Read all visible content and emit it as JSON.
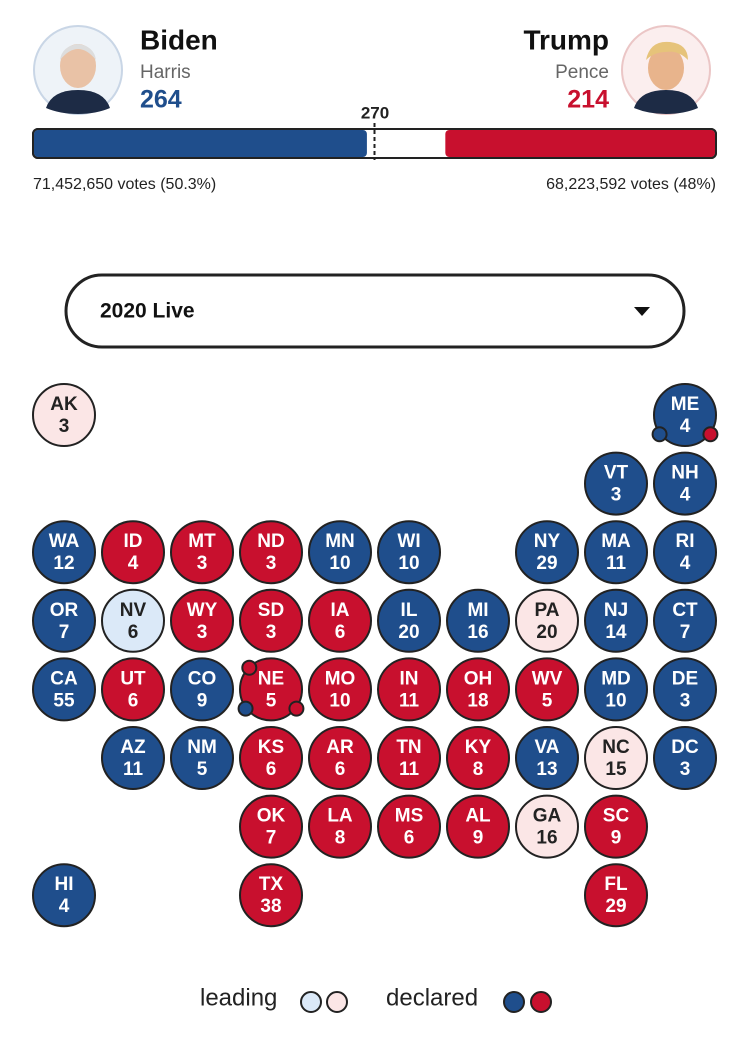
{
  "header": {
    "left": {
      "name": "Biden",
      "running_mate": "Harris",
      "electoral_votes": 264,
      "color": "#1f4e8c",
      "popular_vote": "71,452,650 votes (50.3%)"
    },
    "right": {
      "name": "Trump",
      "running_mate": "Pence",
      "electoral_votes": 214,
      "color": "#c8102e",
      "popular_vote": "68,223,592 votes (48%)"
    },
    "threshold": 270
  },
  "selector": {
    "label": "2020 Live"
  },
  "states": [
    {
      "abbr": "AK",
      "votes": 3,
      "color": "#fbe6e6"
    },
    {
      "abbr": "ME",
      "votes": 4,
      "color": "#1f4e8c",
      "dots": [
        {
          "corner": "bottom-left",
          "color": "#1f4e8c"
        },
        {
          "corner": "bottom-right",
          "color": "#c8102e"
        }
      ]
    },
    {
      "abbr": "VT",
      "votes": 3,
      "color": "#1f4e8c"
    },
    {
      "abbr": "NH",
      "votes": 4,
      "color": "#1f4e8c"
    },
    {
      "abbr": "WA",
      "votes": 12,
      "color": "#1f4e8c"
    },
    {
      "abbr": "ID",
      "votes": 4,
      "color": "#c8102e"
    },
    {
      "abbr": "MT",
      "votes": 3,
      "color": "#c8102e"
    },
    {
      "abbr": "ND",
      "votes": 3,
      "color": "#c8102e"
    },
    {
      "abbr": "MN",
      "votes": 10,
      "color": "#1f4e8c"
    },
    {
      "abbr": "WI",
      "votes": 10,
      "color": "#1f4e8c"
    },
    {
      "abbr": "NY",
      "votes": 29,
      "color": "#1f4e8c"
    },
    {
      "abbr": "MA",
      "votes": 11,
      "color": "#1f4e8c"
    },
    {
      "abbr": "RI",
      "votes": 4,
      "color": "#1f4e8c"
    },
    {
      "abbr": "OR",
      "votes": 7,
      "color": "#1f4e8c"
    },
    {
      "abbr": "NV",
      "votes": 6,
      "color": "#dbe9f8"
    },
    {
      "abbr": "WY",
      "votes": 3,
      "color": "#c8102e"
    },
    {
      "abbr": "SD",
      "votes": 3,
      "color": "#c8102e"
    },
    {
      "abbr": "IA",
      "votes": 6,
      "color": "#c8102e"
    },
    {
      "abbr": "IL",
      "votes": 20,
      "color": "#1f4e8c"
    },
    {
      "abbr": "MI",
      "votes": 16,
      "color": "#1f4e8c"
    },
    {
      "abbr": "PA",
      "votes": 20,
      "color": "#fbe6e6"
    },
    {
      "abbr": "NJ",
      "votes": 14,
      "color": "#1f4e8c"
    },
    {
      "abbr": "CT",
      "votes": 7,
      "color": "#1f4e8c"
    },
    {
      "abbr": "CA",
      "votes": 55,
      "color": "#1f4e8c"
    },
    {
      "abbr": "UT",
      "votes": 6,
      "color": "#c8102e"
    },
    {
      "abbr": "CO",
      "votes": 9,
      "color": "#1f4e8c"
    },
    {
      "abbr": "NE",
      "votes": 5,
      "color": "#c8102e",
      "dots": [
        {
          "corner": "top-left",
          "color": "#c8102e"
        },
        {
          "corner": "bottom-left",
          "color": "#1f4e8c"
        },
        {
          "corner": "bottom-right",
          "color": "#c8102e"
        }
      ]
    },
    {
      "abbr": "MO",
      "votes": 10,
      "color": "#c8102e"
    },
    {
      "abbr": "IN",
      "votes": 11,
      "color": "#c8102e"
    },
    {
      "abbr": "OH",
      "votes": 18,
      "color": "#c8102e"
    },
    {
      "abbr": "WV",
      "votes": 5,
      "color": "#c8102e"
    },
    {
      "abbr": "MD",
      "votes": 10,
      "color": "#1f4e8c"
    },
    {
      "abbr": "DE",
      "votes": 3,
      "color": "#1f4e8c"
    },
    {
      "abbr": "AZ",
      "votes": 11,
      "color": "#1f4e8c"
    },
    {
      "abbr": "NM",
      "votes": 5,
      "color": "#1f4e8c"
    },
    {
      "abbr": "KS",
      "votes": 6,
      "color": "#c8102e"
    },
    {
      "abbr": "AR",
      "votes": 6,
      "color": "#c8102e"
    },
    {
      "abbr": "TN",
      "votes": 11,
      "color": "#c8102e"
    },
    {
      "abbr": "KY",
      "votes": 8,
      "color": "#c8102e"
    },
    {
      "abbr": "VA",
      "votes": 13,
      "color": "#1f4e8c"
    },
    {
      "abbr": "NC",
      "votes": 15,
      "color": "#fbe6e6"
    },
    {
      "abbr": "DC",
      "votes": 3,
      "color": "#1f4e8c"
    },
    {
      "abbr": "OK",
      "votes": 7,
      "color": "#c8102e"
    },
    {
      "abbr": "LA",
      "votes": 8,
      "color": "#c8102e"
    },
    {
      "abbr": "MS",
      "votes": 6,
      "color": "#c8102e"
    },
    {
      "abbr": "AL",
      "votes": 9,
      "color": "#c8102e"
    },
    {
      "abbr": "GA",
      "votes": 16,
      "color": "#fbe6e6"
    },
    {
      "abbr": "SC",
      "votes": 9,
      "color": "#c8102e"
    },
    {
      "abbr": "HI",
      "votes": 4,
      "color": "#1f4e8c"
    },
    {
      "abbr": "TX",
      "votes": 38,
      "color": "#c8102e"
    },
    {
      "abbr": "FL",
      "votes": 29,
      "color": "#c8102e"
    }
  ],
  "legend": {
    "leading": {
      "label": "leading",
      "colors": [
        "#dbe9f8",
        "#fbe6e6"
      ]
    },
    "declared": {
      "label": "declared",
      "colors": [
        "#1f4e8c",
        "#c8102e"
      ]
    }
  }
}
